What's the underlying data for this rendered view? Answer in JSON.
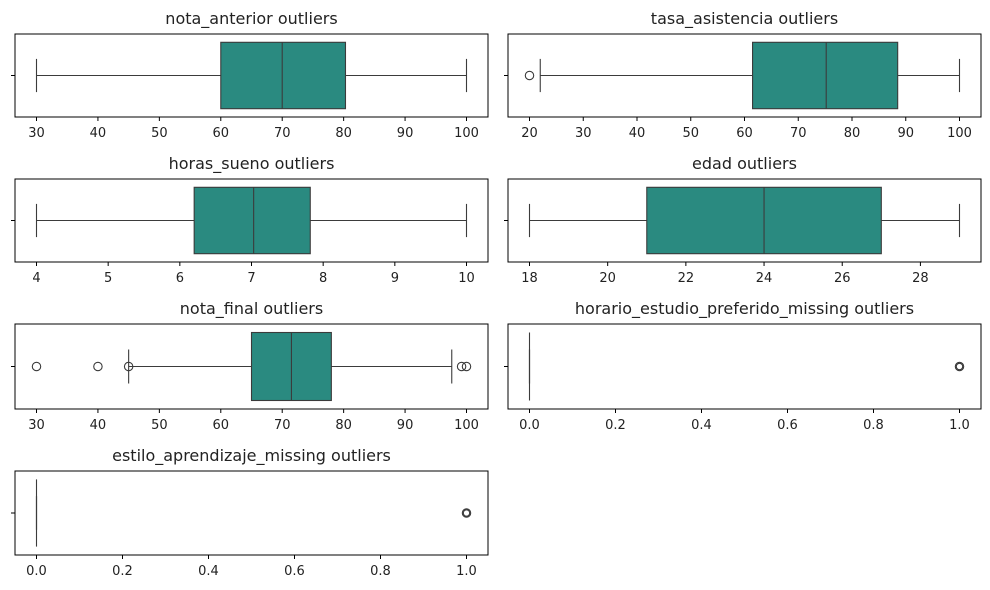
{
  "figure": {
    "box_color": "#2a8a80",
    "line_color": "#3b3b3b",
    "background": "#ffffff"
  },
  "chart_data": [
    {
      "type": "box",
      "title": "nota_anterior outliers",
      "xlim": [
        26.5,
        103.5
      ],
      "ticks": [
        30,
        40,
        50,
        60,
        70,
        80,
        90,
        100
      ],
      "tick_labels": [
        "30",
        "40",
        "50",
        "60",
        "70",
        "80",
        "90",
        "100"
      ],
      "stats": {
        "whisker_low": 30,
        "q1": 60,
        "median": 70,
        "q3": 80.3,
        "whisker_high": 100
      },
      "outliers": []
    },
    {
      "type": "box",
      "title": "tasa_asistencia outliers",
      "xlim": [
        16.0,
        104.0
      ],
      "ticks": [
        20,
        30,
        40,
        50,
        60,
        70,
        80,
        90,
        100
      ],
      "tick_labels": [
        "20",
        "30",
        "40",
        "50",
        "60",
        "70",
        "80",
        "90",
        "100"
      ],
      "stats": {
        "whisker_low": 22,
        "q1": 61.5,
        "median": 75.2,
        "q3": 88.5,
        "whisker_high": 100
      },
      "outliers": [
        20
      ]
    },
    {
      "type": "box",
      "title": "horas_sueno outliers",
      "xlim": [
        3.7,
        10.3
      ],
      "ticks": [
        4,
        5,
        6,
        7,
        8,
        9,
        10
      ],
      "tick_labels": [
        "4",
        "5",
        "6",
        "7",
        "8",
        "9",
        "10"
      ],
      "stats": {
        "whisker_low": 4,
        "q1": 6.2,
        "median": 7.03,
        "q3": 7.82,
        "whisker_high": 10
      },
      "outliers": []
    },
    {
      "type": "box",
      "title": "edad outliers",
      "xlim": [
        17.45,
        29.55
      ],
      "ticks": [
        18,
        20,
        22,
        24,
        26,
        28
      ],
      "tick_labels": [
        "18",
        "20",
        "22",
        "24",
        "26",
        "28"
      ],
      "stats": {
        "whisker_low": 18,
        "q1": 21,
        "median": 24,
        "q3": 27,
        "whisker_high": 29
      },
      "outliers": []
    },
    {
      "type": "box",
      "title": "nota_final outliers",
      "xlim": [
        26.5,
        103.5
      ],
      "ticks": [
        30,
        40,
        50,
        60,
        70,
        80,
        90,
        100
      ],
      "tick_labels": [
        "30",
        "40",
        "50",
        "60",
        "70",
        "80",
        "90",
        "100"
      ],
      "stats": {
        "whisker_low": 45,
        "q1": 65,
        "median": 71.5,
        "q3": 78,
        "whisker_high": 97.6
      },
      "outliers": [
        30,
        40,
        45,
        99.2,
        100
      ]
    },
    {
      "type": "box",
      "title": "horario_estudio_preferido_missing outliers",
      "xlim": [
        -0.05,
        1.05
      ],
      "ticks": [
        0.0,
        0.2,
        0.4,
        0.6,
        0.8,
        1.0
      ],
      "tick_labels": [
        "0.0",
        "0.2",
        "0.4",
        "0.6",
        "0.8",
        "1.0"
      ],
      "stats": {
        "whisker_low": 0,
        "q1": 0,
        "median": 0,
        "q3": 0,
        "whisker_high": 0
      },
      "outliers": [
        1.0
      ]
    },
    {
      "type": "box",
      "title": "estilo_aprendizaje_missing outliers",
      "xlim": [
        -0.05,
        1.05
      ],
      "ticks": [
        0.0,
        0.2,
        0.4,
        0.6,
        0.8,
        1.0
      ],
      "tick_labels": [
        "0.0",
        "0.2",
        "0.4",
        "0.6",
        "0.8",
        "1.0"
      ],
      "stats": {
        "whisker_low": 0,
        "q1": 0,
        "median": 0,
        "q3": 0,
        "whisker_high": 0
      },
      "outliers": [
        1.0
      ]
    }
  ]
}
